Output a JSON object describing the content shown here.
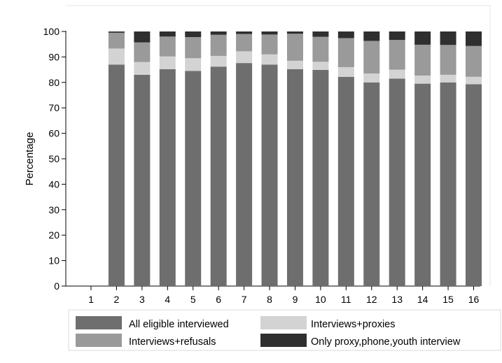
{
  "chart_data": {
    "type": "bar",
    "stacked": true,
    "title": "",
    "xlabel": "",
    "ylabel": "Percentage",
    "ylim": [
      0,
      100
    ],
    "yticks": [
      0,
      10,
      20,
      30,
      40,
      50,
      60,
      70,
      80,
      90,
      100
    ],
    "categories": [
      "1",
      "2",
      "3",
      "4",
      "5",
      "6",
      "7",
      "8",
      "9",
      "10",
      "11",
      "12",
      "13",
      "14",
      "15",
      "16"
    ],
    "grid": false,
    "legend_position": "bottom",
    "series": [
      {
        "name": "All eligible interviewed",
        "color": "#6e6e6e",
        "values": [
          0,
          87.0,
          83.0,
          85.2,
          84.5,
          86.2,
          87.6,
          87.0,
          85.2,
          84.9,
          82.2,
          80.0,
          81.5,
          79.5,
          80.0,
          79.3
        ]
      },
      {
        "name": "Interviews+proxies",
        "color": "#d3d3d3",
        "values": [
          0,
          6.3,
          5.0,
          5.0,
          5.0,
          4.2,
          4.6,
          4.0,
          3.3,
          3.2,
          3.8,
          3.5,
          3.5,
          3.2,
          3.0,
          2.9
        ]
      },
      {
        "name": "Interviews+refusals",
        "color": "#9a9a9a",
        "values": [
          0,
          6.2,
          7.7,
          7.8,
          8.3,
          8.3,
          6.8,
          7.8,
          10.6,
          9.8,
          11.4,
          12.8,
          11.7,
          12.1,
          11.7,
          12.1
        ]
      },
      {
        "name": "Only proxy,phone,youth interview",
        "color": "#2f2f2f",
        "values": [
          0,
          0.5,
          4.3,
          2.0,
          2.2,
          1.3,
          1.0,
          1.2,
          0.9,
          2.1,
          2.6,
          3.7,
          3.3,
          5.2,
          5.3,
          5.7
        ]
      }
    ],
    "legend": {
      "items": [
        {
          "label": "All eligible interviewed",
          "color": "#6e6e6e"
        },
        {
          "label": "Interviews+proxies",
          "color": "#d3d3d3"
        },
        {
          "label": "Interviews+refusals",
          "color": "#9a9a9a"
        },
        {
          "label": "Only proxy,phone,youth interview",
          "color": "#2f2f2f"
        }
      ]
    }
  }
}
